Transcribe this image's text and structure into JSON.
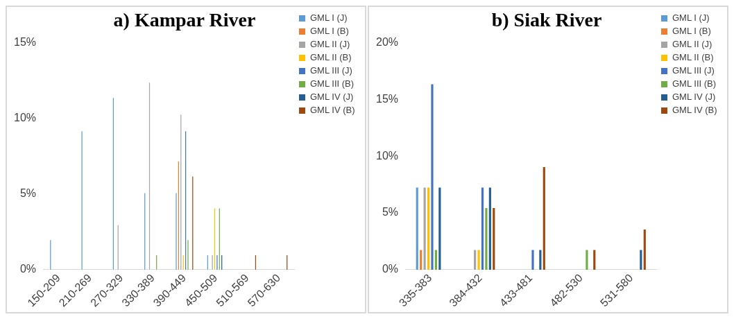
{
  "chart_data": [
    {
      "type": "bar",
      "title": "a) Kampar River",
      "categories": [
        "150-209",
        "210-269",
        "270-329",
        "330-389",
        "390-449",
        "450-509",
        "510-569",
        "570-630"
      ],
      "series": [
        {
          "name": "GML I (J)",
          "color": "#5b9bd5",
          "values": [
            2,
            9.2,
            11.4,
            5.1,
            5.1,
            1,
            0,
            0
          ]
        },
        {
          "name": "GML I (B)",
          "color": "#ed7d31",
          "values": [
            0,
            0,
            0,
            0,
            7.2,
            0,
            0,
            0
          ]
        },
        {
          "name": "GML II (J)",
          "color": "#a5a5a5",
          "values": [
            0,
            0,
            3,
            12.4,
            10.3,
            1,
            0,
            0
          ]
        },
        {
          "name": "GML II (B)",
          "color": "#ffc000",
          "values": [
            0,
            0,
            0,
            0,
            1,
            4.1,
            0,
            0
          ]
        },
        {
          "name": "GML III (J)",
          "color": "#4472c4",
          "values": [
            0,
            0,
            0,
            0,
            9.2,
            1,
            0,
            0
          ]
        },
        {
          "name": "GML III (B)",
          "color": "#70ad47",
          "values": [
            0,
            0,
            0,
            1,
            2,
            4.1,
            0,
            0
          ]
        },
        {
          "name": "GML IV (J)",
          "color": "#255e91",
          "values": [
            0,
            0,
            0,
            0,
            0,
            1,
            0,
            0
          ]
        },
        {
          "name": "GML IV (B)",
          "color": "#9e480e",
          "values": [
            0,
            0,
            0,
            0,
            6.2,
            0,
            1,
            1
          ]
        }
      ],
      "ylim": [
        0,
        15
      ],
      "yticks": [
        {
          "value": 0,
          "label": "0%"
        },
        {
          "value": 5,
          "label": "5%"
        },
        {
          "value": 10,
          "label": "10%"
        },
        {
          "value": 15,
          "label": "15%"
        }
      ],
      "grid": false,
      "legend": "right"
    },
    {
      "type": "bar",
      "title": "b) Siak River",
      "categories": [
        "335-383",
        "384-432",
        "433-481",
        "482-530",
        "531-580"
      ],
      "series": [
        {
          "name": "GML I (J)",
          "color": "#5b9bd5",
          "values": [
            7.3,
            0,
            0,
            0,
            0
          ]
        },
        {
          "name": "GML I (B)",
          "color": "#ed7d31",
          "values": [
            1.8,
            0,
            0,
            0,
            0
          ]
        },
        {
          "name": "GML II (J)",
          "color": "#a5a5a5",
          "values": [
            7.3,
            1.8,
            0,
            0,
            0
          ]
        },
        {
          "name": "GML II (B)",
          "color": "#ffc000",
          "values": [
            7.3,
            1.8,
            0,
            0,
            0
          ]
        },
        {
          "name": "GML III (J)",
          "color": "#4472c4",
          "values": [
            16.4,
            7.3,
            1.8,
            0,
            0
          ]
        },
        {
          "name": "GML III (B)",
          "color": "#70ad47",
          "values": [
            1.8,
            5.5,
            0,
            1.8,
            0
          ]
        },
        {
          "name": "GML IV (J)",
          "color": "#255e91",
          "values": [
            7.3,
            7.3,
            1.8,
            0,
            1.8
          ]
        },
        {
          "name": "GML IV (B)",
          "color": "#9e480e",
          "values": [
            0,
            5.5,
            9.1,
            1.8,
            3.6
          ]
        }
      ],
      "ylim": [
        0,
        20
      ],
      "yticks": [
        {
          "value": 0,
          "label": "0%"
        },
        {
          "value": 5,
          "label": "5%"
        },
        {
          "value": 10,
          "label": "10%"
        },
        {
          "value": 15,
          "label": "15%"
        },
        {
          "value": 20,
          "label": "20%"
        }
      ],
      "grid": false,
      "legend": "right"
    }
  ]
}
